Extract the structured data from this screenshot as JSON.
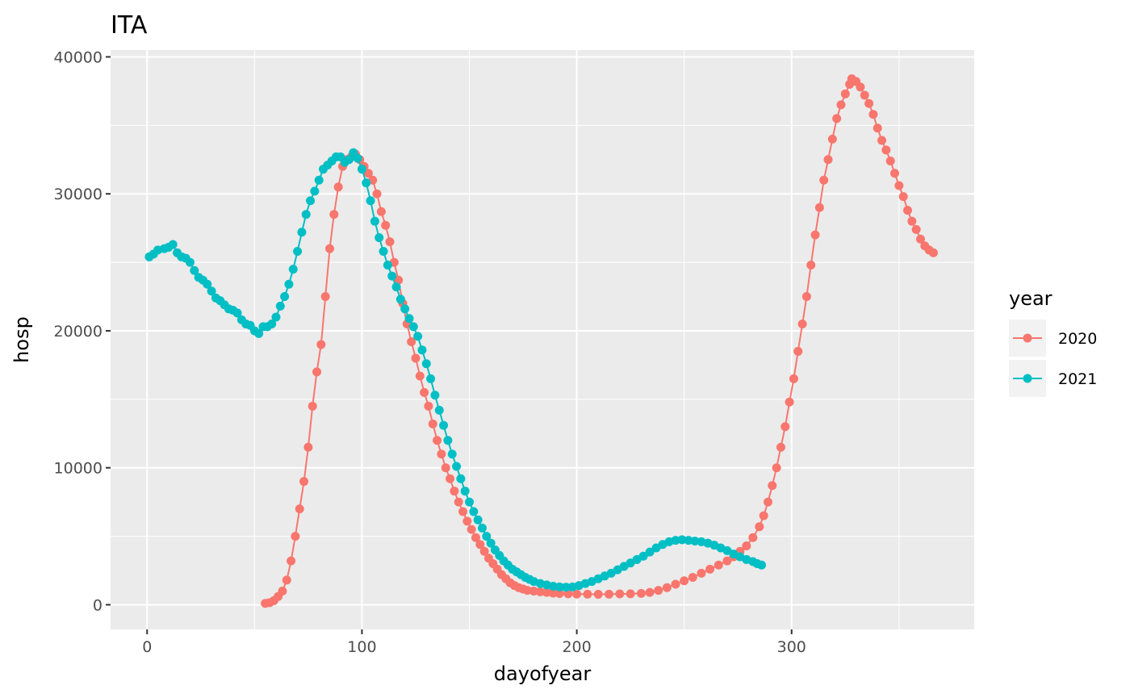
{
  "chart_data": {
    "type": "line",
    "title": "ITA",
    "xlabel": "dayofyear",
    "ylabel": "hosp",
    "xlim": [
      -17,
      385
    ],
    "ylim": [
      -1800,
      40500
    ],
    "x_ticks": [
      0,
      100,
      200,
      300
    ],
    "x_tick_labels": [
      "0",
      "100",
      "200",
      "300"
    ],
    "y_ticks": [
      0,
      10000,
      20000,
      30000,
      40000
    ],
    "y_tick_labels": [
      "0",
      "10000",
      "20000",
      "30000",
      "40000"
    ],
    "grid": true,
    "panel_background": "#ebebeb",
    "legend": {
      "title": "year",
      "position": "right"
    },
    "series": [
      {
        "name": "2020",
        "color": "#f8766d",
        "points": [
          [
            55,
            100
          ],
          [
            57,
            150
          ],
          [
            59,
            300
          ],
          [
            61,
            600
          ],
          [
            63,
            1000
          ],
          [
            65,
            1800
          ],
          [
            67,
            3200
          ],
          [
            69,
            5000
          ],
          [
            71,
            7000
          ],
          [
            73,
            9000
          ],
          [
            75,
            11500
          ],
          [
            77,
            14500
          ],
          [
            79,
            17000
          ],
          [
            81,
            19000
          ],
          [
            83,
            22500
          ],
          [
            85,
            26000
          ],
          [
            87,
            28500
          ],
          [
            89,
            30500
          ],
          [
            91,
            32000
          ],
          [
            93,
            32500
          ],
          [
            95,
            32700
          ],
          [
            97,
            32900
          ],
          [
            99,
            32500
          ],
          [
            101,
            32000
          ],
          [
            103,
            31500
          ],
          [
            105,
            31000
          ],
          [
            107,
            30000
          ],
          [
            109,
            28700
          ],
          [
            111,
            27700
          ],
          [
            113,
            26500
          ],
          [
            115,
            25000
          ],
          [
            117,
            23700
          ],
          [
            119,
            22000
          ],
          [
            121,
            20500
          ],
          [
            123,
            19200
          ],
          [
            125,
            18000
          ],
          [
            127,
            16700
          ],
          [
            129,
            15500
          ],
          [
            131,
            14500
          ],
          [
            133,
            13200
          ],
          [
            135,
            12000
          ],
          [
            137,
            11000
          ],
          [
            139,
            10000
          ],
          [
            141,
            9200
          ],
          [
            143,
            8300
          ],
          [
            145,
            7500
          ],
          [
            147,
            6800
          ],
          [
            149,
            6100
          ],
          [
            151,
            5500
          ],
          [
            153,
            4900
          ],
          [
            155,
            4400
          ],
          [
            157,
            3900
          ],
          [
            159,
            3400
          ],
          [
            161,
            3000
          ],
          [
            163,
            2600
          ],
          [
            165,
            2200
          ],
          [
            167,
            1900
          ],
          [
            169,
            1600
          ],
          [
            171,
            1400
          ],
          [
            173,
            1250
          ],
          [
            175,
            1150
          ],
          [
            177,
            1050
          ],
          [
            180,
            1000
          ],
          [
            183,
            950
          ],
          [
            186,
            900
          ],
          [
            189,
            850
          ],
          [
            192,
            820
          ],
          [
            196,
            800
          ],
          [
            200,
            780
          ],
          [
            205,
            770
          ],
          [
            210,
            760
          ],
          [
            215,
            770
          ],
          [
            220,
            790
          ],
          [
            225,
            800
          ],
          [
            230,
            830
          ],
          [
            234,
            900
          ],
          [
            238,
            1050
          ],
          [
            242,
            1250
          ],
          [
            246,
            1500
          ],
          [
            250,
            1750
          ],
          [
            254,
            2000
          ],
          [
            258,
            2300
          ],
          [
            262,
            2600
          ],
          [
            266,
            2900
          ],
          [
            270,
            3200
          ],
          [
            273,
            3500
          ],
          [
            276,
            3900
          ],
          [
            279,
            4300
          ],
          [
            282,
            4900
          ],
          [
            285,
            5700
          ],
          [
            287,
            6500
          ],
          [
            289,
            7500
          ],
          [
            291,
            8700
          ],
          [
            293,
            10000
          ],
          [
            295,
            11500
          ],
          [
            297,
            13000
          ],
          [
            299,
            14800
          ],
          [
            301,
            16500
          ],
          [
            303,
            18500
          ],
          [
            305,
            20500
          ],
          [
            307,
            22500
          ],
          [
            309,
            24800
          ],
          [
            311,
            27000
          ],
          [
            313,
            29000
          ],
          [
            315,
            31000
          ],
          [
            317,
            32500
          ],
          [
            319,
            34000
          ],
          [
            321,
            35500
          ],
          [
            323,
            36500
          ],
          [
            325,
            37300
          ],
          [
            327,
            38000
          ],
          [
            328,
            38400
          ],
          [
            330,
            38200
          ],
          [
            332,
            37800
          ],
          [
            334,
            37200
          ],
          [
            336,
            36600
          ],
          [
            338,
            35800
          ],
          [
            340,
            34800
          ],
          [
            342,
            33900
          ],
          [
            344,
            33200
          ],
          [
            346,
            32400
          ],
          [
            348,
            31500
          ],
          [
            350,
            30600
          ],
          [
            352,
            29800
          ],
          [
            354,
            28800
          ],
          [
            356,
            28000
          ],
          [
            358,
            27400
          ],
          [
            360,
            26700
          ],
          [
            362,
            26200
          ],
          [
            364,
            25900
          ],
          [
            366,
            25700
          ]
        ]
      },
      {
        "name": "2021",
        "color": "#00bfc4",
        "points": [
          [
            1,
            25400
          ],
          [
            3,
            25600
          ],
          [
            5,
            25900
          ],
          [
            8,
            26000
          ],
          [
            10,
            26100
          ],
          [
            12,
            26300
          ],
          [
            14,
            25700
          ],
          [
            16,
            25400
          ],
          [
            18,
            25300
          ],
          [
            20,
            25000
          ],
          [
            22,
            24400
          ],
          [
            24,
            23900
          ],
          [
            26,
            23700
          ],
          [
            28,
            23400
          ],
          [
            30,
            22900
          ],
          [
            32,
            22400
          ],
          [
            34,
            22200
          ],
          [
            36,
            21900
          ],
          [
            38,
            21600
          ],
          [
            40,
            21500
          ],
          [
            42,
            21300
          ],
          [
            44,
            20800
          ],
          [
            46,
            20500
          ],
          [
            48,
            20400
          ],
          [
            50,
            20000
          ],
          [
            52,
            19800
          ],
          [
            54,
            20300
          ],
          [
            56,
            20300
          ],
          [
            58,
            20500
          ],
          [
            60,
            21000
          ],
          [
            62,
            21800
          ],
          [
            64,
            22500
          ],
          [
            66,
            23400
          ],
          [
            68,
            24500
          ],
          [
            70,
            25800
          ],
          [
            72,
            27200
          ],
          [
            74,
            28500
          ],
          [
            76,
            29500
          ],
          [
            78,
            30200
          ],
          [
            80,
            31000
          ],
          [
            82,
            31800
          ],
          [
            84,
            32100
          ],
          [
            86,
            32400
          ],
          [
            88,
            32700
          ],
          [
            90,
            32700
          ],
          [
            92,
            32300
          ],
          [
            94,
            32500
          ],
          [
            96,
            33000
          ],
          [
            98,
            32600
          ],
          [
            100,
            31800
          ],
          [
            102,
            30800
          ],
          [
            104,
            29500
          ],
          [
            106,
            28000
          ],
          [
            108,
            26800
          ],
          [
            110,
            25800
          ],
          [
            112,
            24800
          ],
          [
            114,
            24000
          ],
          [
            116,
            23200
          ],
          [
            118,
            22300
          ],
          [
            120,
            21600
          ],
          [
            122,
            20900
          ],
          [
            124,
            20300
          ],
          [
            126,
            19600
          ],
          [
            128,
            18600
          ],
          [
            130,
            17600
          ],
          [
            132,
            16500
          ],
          [
            134,
            15300
          ],
          [
            136,
            14200
          ],
          [
            138,
            13100
          ],
          [
            140,
            12000
          ],
          [
            142,
            11000
          ],
          [
            144,
            10100
          ],
          [
            146,
            9200
          ],
          [
            148,
            8300
          ],
          [
            150,
            7500
          ],
          [
            152,
            6800
          ],
          [
            154,
            6200
          ],
          [
            156,
            5600
          ],
          [
            158,
            5000
          ],
          [
            160,
            4500
          ],
          [
            162,
            4000
          ],
          [
            164,
            3600
          ],
          [
            166,
            3200
          ],
          [
            168,
            2900
          ],
          [
            170,
            2600
          ],
          [
            172,
            2400
          ],
          [
            174,
            2200
          ],
          [
            176,
            2000
          ],
          [
            178,
            1850
          ],
          [
            180,
            1700
          ],
          [
            183,
            1550
          ],
          [
            186,
            1450
          ],
          [
            189,
            1350
          ],
          [
            192,
            1300
          ],
          [
            195,
            1280
          ],
          [
            198,
            1300
          ],
          [
            201,
            1400
          ],
          [
            204,
            1550
          ],
          [
            207,
            1700
          ],
          [
            210,
            1900
          ],
          [
            213,
            2100
          ],
          [
            216,
            2300
          ],
          [
            219,
            2550
          ],
          [
            222,
            2800
          ],
          [
            225,
            3050
          ],
          [
            228,
            3300
          ],
          [
            231,
            3550
          ],
          [
            234,
            3850
          ],
          [
            237,
            4150
          ],
          [
            240,
            4400
          ],
          [
            243,
            4600
          ],
          [
            246,
            4700
          ],
          [
            249,
            4750
          ],
          [
            252,
            4700
          ],
          [
            255,
            4650
          ],
          [
            258,
            4600
          ],
          [
            261,
            4500
          ],
          [
            264,
            4350
          ],
          [
            267,
            4150
          ],
          [
            270,
            3950
          ],
          [
            273,
            3700
          ],
          [
            276,
            3500
          ],
          [
            279,
            3300
          ],
          [
            282,
            3150
          ],
          [
            284,
            3000
          ],
          [
            286,
            2900
          ]
        ]
      }
    ]
  }
}
